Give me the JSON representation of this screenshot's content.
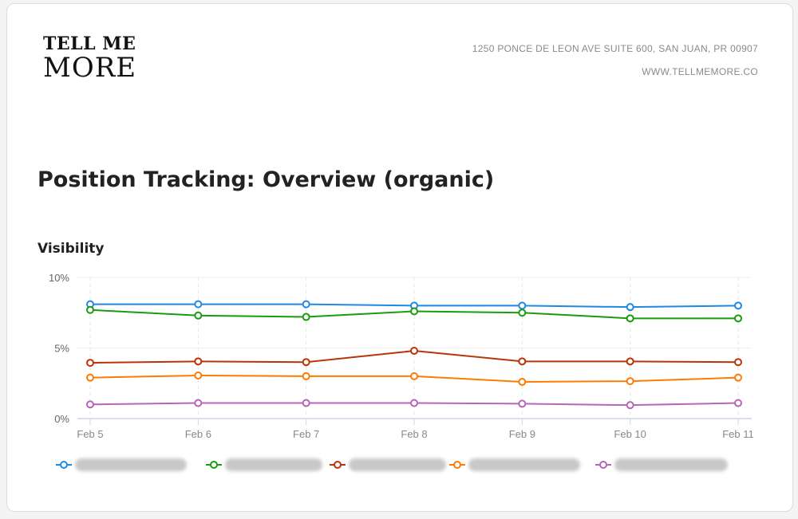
{
  "header": {
    "logo_line1": "TELL ME",
    "logo_line2": "MORE",
    "address": "1250 PONCE DE LEON AVE SUITE 600, SAN JUAN, PR 00907",
    "website": "WWW.TELLMEMORE.CO"
  },
  "page_title": "Position Tracking: Overview (organic)",
  "chart_data": {
    "type": "line",
    "title": "Visibility",
    "categories": [
      "Feb 5",
      "Feb 6",
      "Feb 7",
      "Feb 8",
      "Feb 9",
      "Feb 10",
      "Feb 11"
    ],
    "y_ticks": [
      "0%",
      "5%",
      "10%"
    ],
    "ylim": [
      0,
      10
    ],
    "y_unit": "%",
    "grid": true,
    "legend_placement": "bottom",
    "series": [
      {
        "color": "#1e88e5",
        "values": [
          8.1,
          8.1,
          8.1,
          8.0,
          8.0,
          7.9,
          8.0
        ]
      },
      {
        "color": "#1a9c0f",
        "values": [
          7.7,
          7.3,
          7.2,
          7.6,
          7.5,
          7.1,
          7.1
        ]
      },
      {
        "color": "#bb3407",
        "values": [
          3.95,
          4.05,
          4.0,
          4.8,
          4.05,
          4.05,
          4.0
        ]
      },
      {
        "color": "#ff7a00",
        "values": [
          2.9,
          3.05,
          3.0,
          3.0,
          2.6,
          2.65,
          2.9
        ]
      },
      {
        "color": "#b865b8",
        "values": [
          1.0,
          1.1,
          1.1,
          1.1,
          1.05,
          0.95,
          1.1
        ]
      }
    ]
  }
}
